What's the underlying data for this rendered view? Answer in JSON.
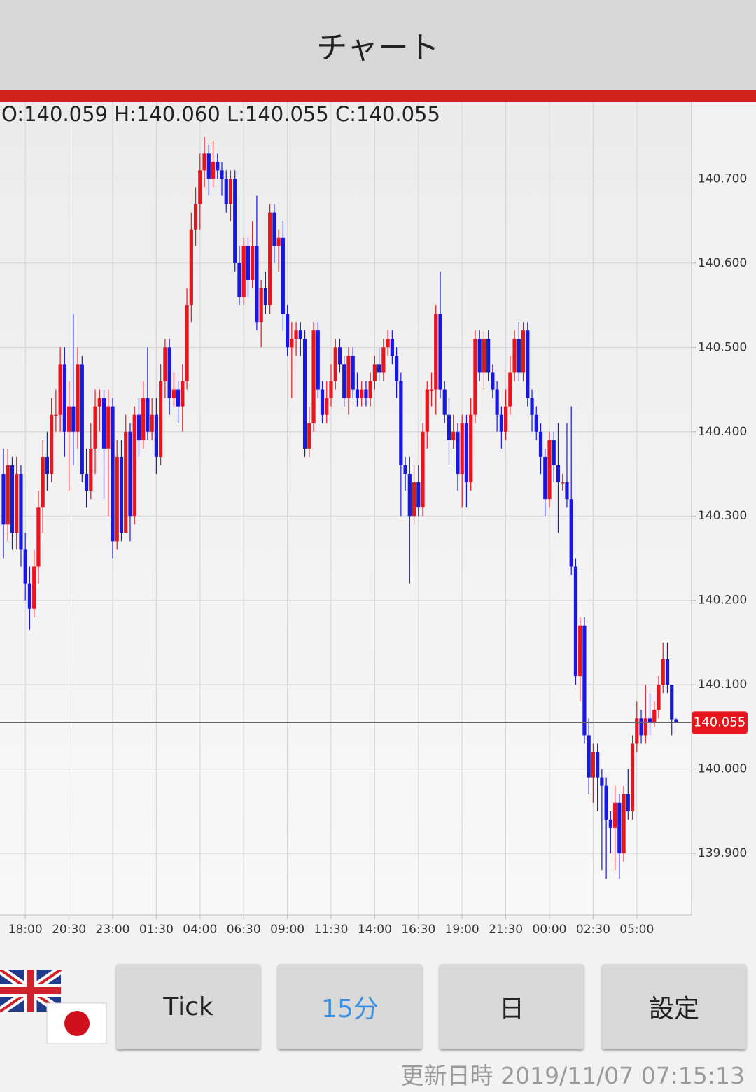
{
  "header": {
    "title": "チャート"
  },
  "chart_data": {
    "type": "candlestick",
    "ohlc_text": "O:140.059 H:140.060 L:140.055 C:140.055",
    "up_color": "#e8141e",
    "down_color": "#1818e0",
    "ylim": [
      139.827,
      140.79
    ],
    "yticks": [
      {
        "value": 139.9,
        "label": "139.900"
      },
      {
        "value": 140.0,
        "label": "140.000"
      },
      {
        "value": 140.1,
        "label": "140.100"
      },
      {
        "value": 140.2,
        "label": "140.200"
      },
      {
        "value": 140.3,
        "label": "140.300"
      },
      {
        "value": 140.4,
        "label": "140.400"
      },
      {
        "value": 140.5,
        "label": "140.500"
      },
      {
        "value": 140.6,
        "label": "140.600"
      },
      {
        "value": 140.7,
        "label": "140.700"
      }
    ],
    "xticks": [
      {
        "value": 5,
        "label": "18:00"
      },
      {
        "value": 15,
        "label": "20:30"
      },
      {
        "value": 25,
        "label": "23:00"
      },
      {
        "value": 35,
        "label": "01:30"
      },
      {
        "value": 45,
        "label": "04:00"
      },
      {
        "value": 55,
        "label": "06:30"
      },
      {
        "value": 65,
        "label": "09:00"
      },
      {
        "value": 75,
        "label": "11:30"
      },
      {
        "value": 85,
        "label": "14:00"
      },
      {
        "value": 95,
        "label": "16:30"
      },
      {
        "value": 105,
        "label": "19:00"
      },
      {
        "value": 115,
        "label": "21:30"
      },
      {
        "value": 125,
        "label": "00:00"
      },
      {
        "value": 135,
        "label": "02:30"
      },
      {
        "value": 145,
        "label": "05:00"
      }
    ],
    "grid": true,
    "current_price": 140.055,
    "open": [
      140.35,
      140.29,
      140.36,
      140.28,
      140.35,
      140.26,
      140.22,
      140.19,
      140.24,
      140.31,
      140.37,
      140.35,
      140.42,
      140.42,
      140.48,
      140.4,
      140.43,
      140.4,
      140.48,
      140.35,
      140.33,
      140.38,
      140.43,
      140.44,
      140.38,
      140.43,
      140.27,
      140.37,
      140.28,
      140.4,
      140.3,
      140.42,
      140.39,
      140.44,
      140.4,
      140.42,
      140.37,
      140.46,
      140.5,
      140.44,
      140.45,
      140.43,
      140.46,
      140.55,
      140.64,
      140.67,
      140.71,
      140.73,
      140.7,
      140.72,
      140.71,
      140.7,
      140.67,
      140.7,
      140.6,
      140.56,
      140.62,
      140.58,
      140.62,
      140.53,
      140.57,
      140.55,
      140.66,
      140.62,
      140.63,
      140.54,
      140.5,
      140.51,
      140.52,
      140.51,
      140.38,
      140.41,
      140.52,
      140.45,
      140.42,
      140.44,
      140.46,
      140.5,
      140.48,
      140.44,
      140.49,
      140.45,
      140.44,
      140.45,
      140.44,
      140.46,
      140.48,
      140.47,
      140.5,
      140.51,
      140.49,
      140.46,
      140.36,
      140.35,
      140.3,
      140.34,
      140.31,
      140.4,
      140.45,
      140.45,
      140.54,
      140.45,
      140.42,
      140.39,
      140.4,
      140.35,
      140.41,
      140.34,
      140.42,
      140.51,
      140.47,
      140.51,
      140.47,
      140.45,
      140.42,
      140.4,
      140.43,
      140.47,
      140.51,
      140.47,
      140.52,
      140.44,
      140.42,
      140.4,
      140.37,
      140.32,
      140.39,
      140.36,
      140.34,
      140.34,
      140.32,
      140.24,
      140.11,
      140.17,
      140.04,
      139.99,
      140.02,
      139.99,
      139.98,
      139.94,
      139.93,
      139.96,
      139.9,
      139.97,
      139.95,
      140.03,
      140.06,
      140.04,
      140.06,
      140.055,
      140.07,
      140.1,
      140.13,
      140.1,
      140.059
    ],
    "high": [
      140.38,
      140.38,
      140.37,
      140.37,
      140.36,
      140.28,
      140.24,
      140.26,
      140.33,
      140.39,
      140.4,
      140.44,
      140.45,
      140.5,
      140.5,
      140.46,
      140.54,
      140.5,
      140.49,
      140.38,
      140.41,
      140.45,
      140.45,
      140.45,
      140.45,
      140.44,
      140.39,
      140.39,
      140.42,
      140.41,
      140.43,
      140.44,
      140.46,
      140.5,
      140.44,
      140.44,
      140.48,
      140.51,
      140.51,
      140.47,
      140.46,
      140.48,
      140.57,
      140.66,
      140.69,
      140.73,
      140.75,
      140.74,
      140.745,
      140.73,
      140.72,
      140.71,
      140.71,
      140.71,
      140.62,
      140.63,
      140.63,
      140.65,
      140.68,
      140.58,
      140.59,
      140.67,
      140.67,
      140.64,
      140.65,
      140.55,
      140.53,
      140.53,
      140.53,
      140.52,
      140.43,
      140.53,
      140.53,
      140.46,
      140.46,
      140.48,
      140.51,
      140.51,
      140.49,
      140.5,
      140.5,
      140.47,
      140.46,
      140.46,
      140.47,
      140.49,
      140.5,
      140.51,
      140.52,
      140.52,
      140.5,
      140.47,
      140.37,
      140.37,
      140.36,
      140.36,
      140.41,
      140.46,
      140.47,
      140.55,
      140.59,
      140.46,
      140.44,
      140.42,
      140.41,
      140.42,
      140.42,
      140.44,
      140.52,
      140.52,
      140.52,
      140.52,
      140.48,
      140.46,
      140.43,
      140.45,
      140.49,
      140.52,
      140.53,
      140.53,
      140.53,
      140.45,
      140.43,
      140.41,
      140.38,
      140.4,
      140.4,
      140.41,
      140.35,
      140.41,
      140.43,
      140.25,
      140.18,
      140.18,
      140.06,
      140.03,
      140.03,
      140.0,
      139.99,
      139.95,
      139.98,
      139.97,
      139.98,
      140.0,
      140.04,
      140.08,
      140.07,
      140.1,
      140.09,
      140.08,
      140.11,
      140.15,
      140.15,
      140.1,
      140.06
    ],
    "low": [
      140.25,
      140.27,
      140.26,
      140.26,
      140.24,
      140.2,
      140.165,
      140.18,
      140.22,
      140.28,
      140.33,
      140.34,
      140.4,
      140.4,
      140.37,
      140.33,
      140.36,
      140.38,
      140.34,
      140.31,
      140.32,
      140.35,
      140.4,
      140.32,
      140.3,
      140.25,
      140.26,
      140.27,
      140.28,
      140.27,
      140.29,
      140.37,
      140.38,
      140.39,
      140.39,
      140.35,
      140.36,
      140.44,
      140.42,
      140.43,
      140.41,
      140.4,
      140.45,
      140.53,
      140.62,
      140.64,
      140.69,
      140.68,
      140.69,
      140.7,
      140.68,
      140.66,
      140.65,
      140.59,
      140.55,
      140.55,
      140.56,
      140.57,
      140.52,
      140.5,
      140.54,
      140.54,
      140.6,
      140.59,
      140.52,
      140.49,
      140.44,
      140.49,
      140.49,
      140.37,
      140.37,
      140.4,
      140.44,
      140.41,
      140.41,
      140.43,
      140.45,
      140.47,
      140.43,
      140.42,
      140.44,
      140.43,
      140.43,
      140.43,
      140.43,
      140.45,
      140.46,
      140.46,
      140.49,
      140.48,
      140.44,
      140.3,
      140.33,
      140.22,
      140.29,
      140.3,
      140.3,
      140.38,
      140.43,
      140.42,
      140.44,
      140.41,
      140.36,
      140.38,
      140.33,
      140.31,
      140.31,
      140.33,
      140.41,
      140.46,
      140.45,
      140.46,
      140.44,
      140.4,
      140.38,
      140.39,
      140.42,
      140.46,
      140.46,
      140.46,
      140.43,
      140.4,
      140.39,
      140.35,
      140.3,
      140.31,
      140.34,
      140.28,
      140.33,
      140.31,
      140.23,
      140.1,
      140.08,
      140.03,
      139.97,
      139.96,
      139.95,
      139.88,
      139.87,
      139.9,
      139.88,
      139.87,
      139.89,
      139.94,
      139.94,
      140.02,
      140.03,
      140.03,
      140.04,
      140.05,
      140.06,
      140.09,
      140.09,
      140.04,
      140.055
    ],
    "close": [
      140.29,
      140.36,
      140.28,
      140.35,
      140.26,
      140.22,
      140.19,
      140.24,
      140.31,
      140.37,
      140.35,
      140.42,
      140.42,
      140.48,
      140.4,
      140.43,
      140.4,
      140.48,
      140.35,
      140.33,
      140.38,
      140.43,
      140.44,
      140.38,
      140.43,
      140.27,
      140.37,
      140.28,
      140.4,
      140.3,
      140.42,
      140.39,
      140.44,
      140.4,
      140.42,
      140.37,
      140.46,
      140.5,
      140.44,
      140.45,
      140.43,
      140.46,
      140.55,
      140.64,
      140.67,
      140.71,
      140.73,
      140.7,
      140.72,
      140.71,
      140.7,
      140.67,
      140.7,
      140.6,
      140.56,
      140.62,
      140.58,
      140.62,
      140.53,
      140.57,
      140.55,
      140.66,
      140.62,
      140.63,
      140.54,
      140.5,
      140.51,
      140.52,
      140.51,
      140.38,
      140.41,
      140.52,
      140.45,
      140.42,
      140.44,
      140.46,
      140.5,
      140.48,
      140.44,
      140.49,
      140.45,
      140.44,
      140.45,
      140.44,
      140.46,
      140.48,
      140.47,
      140.5,
      140.51,
      140.49,
      140.46,
      140.36,
      140.35,
      140.3,
      140.34,
      140.31,
      140.4,
      140.45,
      140.45,
      140.54,
      140.45,
      140.42,
      140.39,
      140.4,
      140.35,
      140.41,
      140.34,
      140.42,
      140.51,
      140.47,
      140.51,
      140.47,
      140.45,
      140.42,
      140.4,
      140.43,
      140.47,
      140.51,
      140.47,
      140.52,
      140.44,
      140.42,
      140.4,
      140.37,
      140.32,
      140.39,
      140.36,
      140.34,
      140.34,
      140.32,
      140.24,
      140.11,
      140.17,
      140.04,
      139.99,
      140.02,
      139.99,
      139.98,
      139.94,
      139.93,
      139.96,
      139.9,
      139.97,
      139.95,
      140.03,
      140.06,
      140.04,
      140.06,
      140.055,
      140.07,
      140.1,
      140.13,
      140.1,
      140.059,
      140.055
    ]
  },
  "buttons": [
    "Tick",
    "15分",
    "日",
    "設定"
  ],
  "footer": {
    "updated": "更新日時 2019/11/07 07:15:13"
  }
}
